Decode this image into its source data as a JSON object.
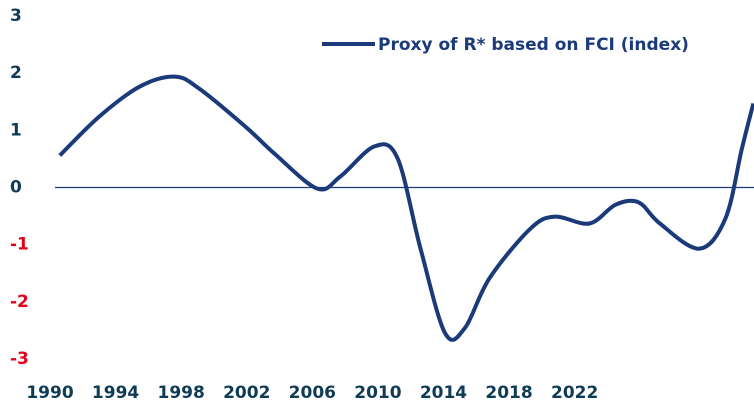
{
  "chart_data": {
    "type": "line",
    "x": [
      1990.6,
      1993.0,
      1995.5,
      1997.6,
      1999.1,
      2001.9,
      2003.7,
      2006.3,
      2007.7,
      2009.8,
      2011.2,
      2012.6,
      2014.1,
      2015.3,
      2016.8,
      2019.3,
      2020.8,
      2022.9,
      2024.5,
      2025.9,
      2027.2,
      2029.6,
      2031.2,
      2032.2,
      2032.9
    ],
    "series": [
      {
        "name": "Proxy of R* based on FCI (index)",
        "color": "#1b3a7a",
        "values": [
          0.56,
          1.24,
          1.77,
          1.94,
          1.73,
          1.07,
          0.59,
          -0.02,
          0.19,
          0.72,
          0.51,
          -1.07,
          -2.55,
          -2.46,
          -1.59,
          -0.72,
          -0.51,
          -0.63,
          -0.3,
          -0.26,
          -0.63,
          -1.07,
          -0.54,
          0.68,
          1.47
        ]
      }
    ],
    "xlim": [
      1990,
      2033
    ],
    "xticks": [
      1990,
      1994,
      1998,
      2002,
      2006,
      2010,
      2014,
      2018,
      2022
    ],
    "ylim": [
      -3,
      3
    ],
    "yticks": [
      3,
      2,
      1,
      0,
      -1,
      -2,
      -3
    ],
    "zero_line": true,
    "tick_label_color": "#0f3b57",
    "negative_tick_label_color": "#e2001a",
    "legend": "top-right"
  }
}
